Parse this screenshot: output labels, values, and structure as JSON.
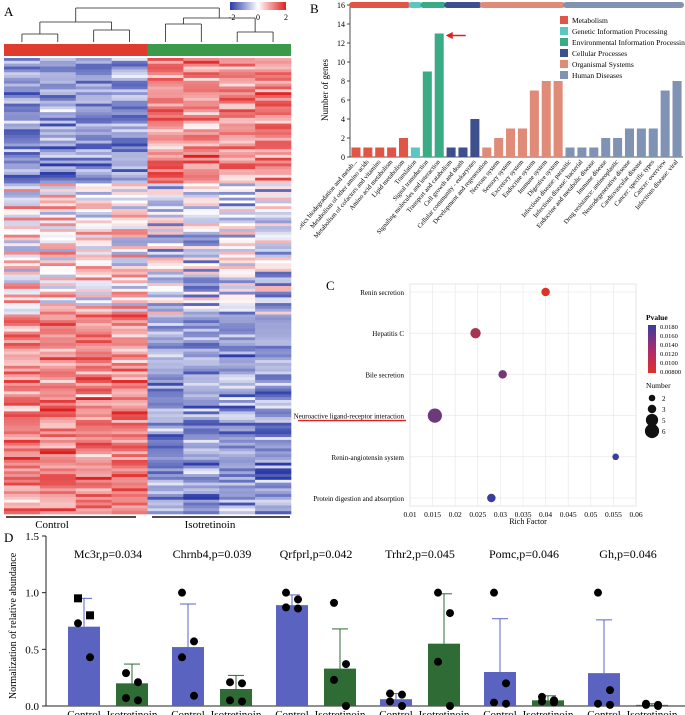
{
  "panel_letters": {
    "a": "A",
    "b": "B",
    "c": "C",
    "d": "D"
  },
  "chart_data": [
    {
      "panel": "A",
      "type": "heatmap",
      "groups": [
        "Control",
        "Isotretinoin"
      ],
      "group_colors": [
        "#e03c2e",
        "#3a9a4a"
      ],
      "color_scale": {
        "min": -2,
        "mid": 0,
        "max": 2,
        "low_color": "#2a3aa8",
        "mid_color": "#ffffff",
        "high_color": "#e02020"
      },
      "scale_ticks": [
        "-2",
        "0",
        "2"
      ],
      "n_columns": 8,
      "n_rows": 160
    },
    {
      "panel": "B",
      "type": "bar",
      "title": "",
      "ylabel": "Number of genes",
      "ylim": [
        0,
        16
      ],
      "yticks": [
        "0",
        "2",
        "4",
        "6",
        "8",
        "10",
        "12",
        "14",
        "16"
      ],
      "categories": [
        "Xenobiotics biodegradation and metab...",
        "Metabolism of other amino acids",
        "Metabolism of cofactors and vitamins",
        "Amino acid metabolism",
        "Lipid metabolism",
        "Translation",
        "Signal transduction",
        "Signaling molecules and interaction",
        "Transport and catabolism",
        "Cell growth and death",
        "Cellular community - eukaryotes",
        "Development and regeneration",
        "Nervous system",
        "Sensory system",
        "Excretory system",
        "Endocrine system",
        "Immune system",
        "Digestive system",
        "Infectious disease: parasitic",
        "Infectious disease: bacterial",
        "Endocrine and metabolic disease",
        "Immune disease",
        "Drug resistance: antineoplastic",
        "Neurodegenerative disease",
        "Cardiovascular disease",
        "Cancer: specific types",
        "Cancer: overview",
        "Infectious disease: viral"
      ],
      "values": [
        1,
        1,
        1,
        1,
        2,
        1,
        9,
        13,
        1,
        1,
        4,
        1,
        2,
        3,
        3,
        7,
        8,
        8,
        1,
        1,
        1,
        2,
        2,
        3,
        3,
        3,
        7,
        8
      ],
      "class_index": [
        0,
        0,
        0,
        0,
        0,
        1,
        2,
        2,
        3,
        3,
        3,
        4,
        4,
        4,
        4,
        4,
        4,
        4,
        5,
        5,
        5,
        5,
        5,
        5,
        5,
        5,
        5,
        5
      ],
      "classes": [
        {
          "name": "Metabolism",
          "color": "#e05545"
        },
        {
          "name": "Genetic Information Processing",
          "color": "#5cc6c0"
        },
        {
          "name": "Environmental Information Processing",
          "color": "#3aab84"
        },
        {
          "name": "Cellular Processes",
          "color": "#3d4f8c"
        },
        {
          "name": "Organismal Systems",
          "color": "#e08a78"
        },
        {
          "name": "Human Diseases",
          "color": "#8193b5"
        }
      ],
      "highlight_index": 7
    },
    {
      "panel": "C",
      "type": "scatter",
      "xlabel": "Rich Factor",
      "xlim": [
        0.01,
        0.06
      ],
      "xticks": [
        "0.01",
        "0.015",
        "0.02",
        "0.025",
        "0.03",
        "0.035",
        "0.04",
        "0.045",
        "0.05",
        "0.055",
        "0.06"
      ],
      "pathways": [
        "Renin secretion",
        "Hepatitis C",
        "Bile secretion",
        "Neuroactive ligand-receptor interaction",
        "Renin-angiotensin system",
        "Protein digestion and absorption"
      ],
      "rich_factor": [
        0.04,
        0.0245,
        0.0305,
        0.0155,
        0.0555,
        0.028
      ],
      "number": [
        3,
        4,
        3,
        6,
        2,
        3
      ],
      "pvalue": [
        0.008,
        0.0115,
        0.0145,
        0.015,
        0.018,
        0.018
      ],
      "pvalue_legend": {
        "title": "Pvalue",
        "ticks": [
          "0.0180",
          "0.0160",
          "0.0140",
          "0.0120",
          "0.0100",
          "0.00800"
        ],
        "min": 0.008,
        "max": 0.018,
        "low_color": "#e0302a",
        "high_color": "#3b3d9e"
      },
      "number_legend": {
        "title": "Number",
        "values": [
          "2",
          "3",
          "5",
          "6"
        ]
      },
      "highlight": "Neuroactive ligand-receptor interaction"
    },
    {
      "panel": "D",
      "type": "bar",
      "ylabel": "Normalization of relative abundance",
      "ylim": [
        0,
        1.5
      ],
      "yticks": [
        "0.0",
        "0.5",
        "1.0",
        "1.5"
      ],
      "genes": [
        {
          "label": "Mc3r,p=0.034",
          "control": 0.7,
          "control_sd": 0.25,
          "treat": 0.2,
          "treat_sd": 0.17,
          "control_pts": [
            0.95,
            0.8,
            0.73,
            0.43
          ],
          "treat_pts": [
            0.29,
            0.21,
            0.07,
            0.05
          ],
          "control_marker": "square"
        },
        {
          "label": "Chrnb4,p=0.039",
          "control": 0.52,
          "control_sd": 0.38,
          "treat": 0.15,
          "treat_sd": 0.12,
          "control_pts": [
            1.0,
            0.57,
            0.43,
            0.09
          ],
          "treat_pts": [
            0.21,
            0.2,
            0.05,
            0.04
          ],
          "control_marker": "circle"
        },
        {
          "label": "Qrfprl,p=0.042",
          "control": 0.89,
          "control_sd": 0.09,
          "treat": 0.33,
          "treat_sd": 0.35,
          "control_pts": [
            1.0,
            0.94,
            0.87,
            0.86
          ],
          "treat_pts": [
            0.91,
            0.37,
            0.23,
            0.0
          ],
          "control_marker": "circle"
        },
        {
          "label": "Trhr2,p=0.045",
          "control": 0.06,
          "control_sd": 0.05,
          "treat": 0.55,
          "treat_sd": 0.44,
          "control_pts": [
            0.11,
            0.1,
            0.04,
            0.0
          ],
          "treat_pts": [
            1.0,
            0.82,
            0.39,
            0.0
          ],
          "control_marker": "circle"
        },
        {
          "label": "Pomc,p=0.046",
          "control": 0.3,
          "control_sd": 0.47,
          "treat": 0.05,
          "treat_sd": 0.04,
          "control_pts": [
            1.0,
            0.2,
            0.03,
            0.02
          ],
          "treat_pts": [
            0.08,
            0.05,
            0.04,
            0.03
          ],
          "control_marker": "circle"
        },
        {
          "label": "Gh,p=0.046",
          "control": 0.29,
          "control_sd": 0.47,
          "treat": 0.01,
          "treat_sd": 0.01,
          "control_pts": [
            1.0,
            0.14,
            0.02,
            0.01
          ],
          "treat_pts": [
            0.02,
            0.01,
            0.01,
            0.0
          ],
          "control_marker": "circle"
        }
      ],
      "x_labels": [
        "Control",
        "Isotretinoin"
      ],
      "control_color": "#5b63c1",
      "treat_color": "#2e6b35"
    }
  ]
}
